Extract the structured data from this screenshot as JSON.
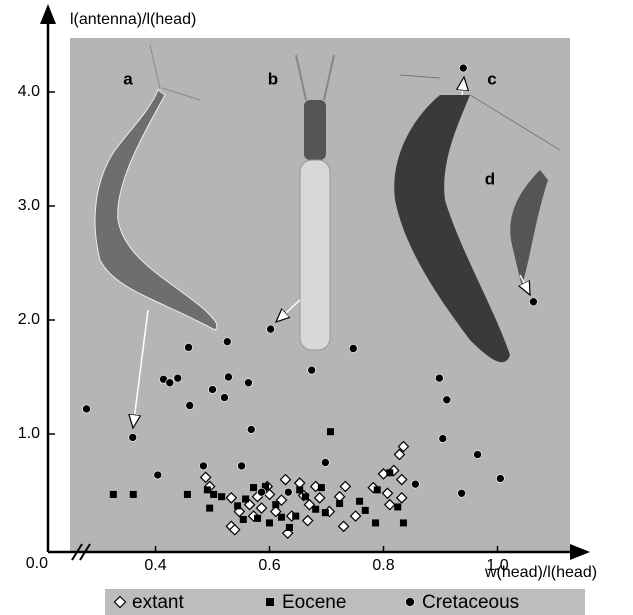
{
  "chart_data": {
    "type": "scatter",
    "x_label": "w(head)/l(head)",
    "y_label": "l(antenna)/l(head)",
    "xlim": [
      0.25,
      1.1
    ],
    "ylim": [
      0,
      4.5
    ],
    "xticks": [
      0.4,
      0.6,
      0.8,
      {
        "value": 1,
        "label": "1.0"
      }
    ],
    "yticks": [
      {
        "value": 0,
        "label": "0.0"
      },
      {
        "value": 1,
        "label": "1.0"
      },
      {
        "value": 2,
        "label": "2.0"
      },
      {
        "value": 3,
        "label": "3.0"
      },
      {
        "value": 4,
        "label": "4.0"
      }
    ],
    "annotations": [
      "a",
      "b",
      "c",
      "d"
    ],
    "series": [
      {
        "name": "extant",
        "color": "#000000",
        "marker": "diamond",
        "x": [
          0.488,
          0.495,
          0.533,
          0.533,
          0.539,
          0.547,
          0.565,
          0.579,
          0.586,
          0.6,
          0.611,
          0.621,
          0.632,
          0.639,
          0.653,
          0.66,
          0.67,
          0.681,
          0.688,
          0.667,
          0.705,
          0.723,
          0.733,
          0.73,
          0.751,
          0.8,
          0.807,
          0.782,
          0.832,
          0.835,
          0.828,
          0.818,
          0.832,
          0.811,
          0.596,
          0.628,
          0.572
        ],
        "values": [
          0.62,
          0.54,
          0.44,
          0.19,
          0.16,
          0.32,
          0.38,
          0.45,
          0.35,
          0.47,
          0.32,
          0.42,
          0.13,
          0.28,
          0.57,
          0.46,
          0.38,
          0.54,
          0.44,
          0.24,
          0.32,
          0.45,
          0.54,
          0.19,
          0.28,
          0.65,
          0.48,
          0.53,
          0.6,
          0.89,
          0.82,
          0.68,
          0.44,
          0.38,
          0.54,
          0.6,
          0.28
        ]
      },
      {
        "name": "Eocene",
        "color": "#000000",
        "marker": "square",
        "x": [
          0.707,
          0.326,
          0.361,
          0.456,
          0.491,
          0.502,
          0.495,
          0.516,
          0.558,
          0.572,
          0.544,
          0.554,
          0.579,
          0.6,
          0.621,
          0.646,
          0.681,
          0.663,
          0.691,
          0.723,
          0.758,
          0.789,
          0.811,
          0.786,
          0.825,
          0.835,
          0.768,
          0.698,
          0.635,
          0.593,
          0.611,
          0.653
        ],
        "values": [
          1.02,
          0.47,
          0.47,
          0.47,
          0.51,
          0.47,
          0.35,
          0.45,
          0.43,
          0.53,
          0.37,
          0.25,
          0.26,
          0.22,
          0.27,
          0.28,
          0.34,
          0.45,
          0.53,
          0.39,
          0.41,
          0.51,
          0.66,
          0.22,
          0.36,
          0.22,
          0.33,
          0.31,
          0.18,
          0.54,
          0.38,
          0.51
        ]
      },
      {
        "name": "Cretaceous",
        "color": "#000000",
        "marker": "circle",
        "x": [
          0.279,
          0.36,
          0.458,
          0.526,
          0.414,
          0.425,
          0.439,
          0.46,
          0.5,
          0.528,
          0.521,
          0.563,
          0.602,
          0.674,
          0.747,
          0.568,
          1.063,
          0.94,
          0.898,
          0.911,
          0.904,
          0.965,
          0.937,
          1.005,
          0.856,
          0.404,
          0.484,
          0.551,
          0.698,
          0.586,
          0.633
        ],
        "values": [
          1.22,
          0.97,
          1.76,
          1.81,
          1.48,
          1.45,
          1.49,
          1.25,
          1.39,
          1.5,
          1.32,
          1.45,
          1.92,
          1.56,
          1.75,
          1.04,
          2.16,
          4.21,
          1.49,
          1.3,
          0.96,
          0.82,
          0.48,
          0.61,
          0.56,
          0.64,
          0.72,
          0.72,
          0.75,
          0.49,
          0.49
        ]
      }
    ]
  }
}
